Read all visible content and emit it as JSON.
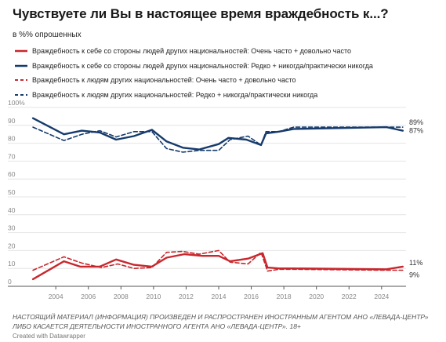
{
  "header": {
    "title": "Чувствуете ли Вы в настоящее время враждебность к...?",
    "subtitle": "в %% опрошенных"
  },
  "footer": {
    "note": "НАСТОЯЩИЙ МАТЕРИАЛ (ИНФОРМАЦИЯ) ПРОИЗВЕДЕН И РАСПРОСТРАНЕН ИНОСТРАННЫМ АГЕНТОМ АНО «ЛЕВАДА-ЦЕНТР» ЛИБО КАСАЕТСЯ ДЕЯТЕЛЬНОСТИ ИНОСТРАННОГО АГЕНТА АНО «ЛЕВАДА-ЦЕНТР». 18+",
    "credit": "Created with Datawrapper"
  },
  "colors": {
    "red": "#c8272d",
    "navy": "#163b6b",
    "grid": "#e4e4e4"
  },
  "chart_data": {
    "type": "line",
    "xlim": [
      2002.5,
      2025.5
    ],
    "ylim": [
      0,
      100
    ],
    "y_ticks": [
      0,
      10,
      20,
      30,
      40,
      50,
      60,
      70,
      80,
      90,
      100
    ],
    "y_tick_labels": [
      "0",
      "10",
      "20",
      "30",
      "40",
      "50",
      "60",
      "70",
      "80",
      "90",
      "100%"
    ],
    "x_ticks": [
      2004,
      2006,
      2008,
      2010,
      2012,
      2014,
      2016,
      2018,
      2020,
      2022,
      2024
    ],
    "x_tick_labels": [
      "2004",
      "2006",
      "2008",
      "2010",
      "2012",
      "2014",
      "2016",
      "2018",
      "2020",
      "2022",
      "2024"
    ],
    "grid": true,
    "legend_position": "top",
    "series": [
      {
        "name": "Враждебность к себе со стороны людей других национальностей: Очень часто + довольно часто",
        "color": "#c8272d",
        "dash": false,
        "end_label": "11%",
        "points": [
          [
            2002.6,
            4
          ],
          [
            2004.5,
            14
          ],
          [
            2005.5,
            11
          ],
          [
            2006.7,
            11
          ],
          [
            2007.7,
            15
          ],
          [
            2008.8,
            12
          ],
          [
            2009.9,
            11
          ],
          [
            2010.8,
            16
          ],
          [
            2011.9,
            18
          ],
          [
            2013.0,
            17
          ],
          [
            2014.0,
            17
          ],
          [
            2014.7,
            14
          ],
          [
            2015.8,
            15.5
          ],
          [
            2016.7,
            18.5
          ],
          [
            2017.0,
            10.5
          ],
          [
            2017.7,
            10
          ],
          [
            2018.6,
            10
          ],
          [
            2024.3,
            9.5
          ],
          [
            2025.3,
            11
          ]
        ]
      },
      {
        "name": "Враждебность к себе со стороны людей других национальностей: Редко + никогда/практически никогда",
        "color": "#163b6b",
        "dash": false,
        "end_label": "87%",
        "points": [
          [
            2002.6,
            94
          ],
          [
            2004.5,
            85
          ],
          [
            2005.6,
            87
          ],
          [
            2006.7,
            86
          ],
          [
            2007.7,
            82
          ],
          [
            2008.8,
            84
          ],
          [
            2009.9,
            87.5
          ],
          [
            2010.8,
            81
          ],
          [
            2011.8,
            77.5
          ],
          [
            2012.8,
            76.5
          ],
          [
            2014.0,
            79.5
          ],
          [
            2014.6,
            83
          ],
          [
            2015.7,
            82
          ],
          [
            2016.6,
            79
          ],
          [
            2016.9,
            85.5
          ],
          [
            2017.7,
            86.5
          ],
          [
            2018.6,
            88
          ],
          [
            2024.3,
            89
          ],
          [
            2025.3,
            87
          ]
        ]
      },
      {
        "name": "Враждебность к людям других национальностей: Очень часто + довольно часто",
        "color": "#c8272d",
        "dash": true,
        "end_label": "",
        "points": [
          [
            2002.6,
            9
          ],
          [
            2004.5,
            16.5
          ],
          [
            2005.6,
            13
          ],
          [
            2006.8,
            10.5
          ],
          [
            2007.8,
            12.5
          ],
          [
            2008.8,
            10
          ],
          [
            2009.9,
            10.5
          ],
          [
            2010.8,
            19
          ],
          [
            2011.8,
            19.5
          ],
          [
            2012.8,
            18
          ],
          [
            2014.0,
            20
          ],
          [
            2014.7,
            13.5
          ],
          [
            2015.8,
            12.5
          ],
          [
            2016.6,
            19
          ],
          [
            2017.0,
            8.5
          ],
          [
            2017.7,
            9.5
          ],
          [
            2018.6,
            9.5
          ],
          [
            2024.3,
            9
          ],
          [
            2025.3,
            9
          ]
        ]
      },
      {
        "name": "Враждебность к людям других национальностей: Редко + никогда/практически никогда",
        "color": "#163b6b",
        "dash": true,
        "end_label": "",
        "points": [
          [
            2002.6,
            89
          ],
          [
            2004.5,
            81.5
          ],
          [
            2005.6,
            85
          ],
          [
            2006.7,
            87
          ],
          [
            2007.7,
            83.5
          ],
          [
            2008.8,
            86.5
          ],
          [
            2009.9,
            86.5
          ],
          [
            2010.8,
            77
          ],
          [
            2011.8,
            75
          ],
          [
            2012.8,
            76
          ],
          [
            2014.0,
            76
          ],
          [
            2014.7,
            82
          ],
          [
            2015.8,
            84
          ],
          [
            2016.6,
            79
          ],
          [
            2016.9,
            86.5
          ],
          [
            2017.7,
            86.5
          ],
          [
            2018.6,
            89
          ],
          [
            2024.3,
            89
          ],
          [
            2025.3,
            89
          ]
        ]
      }
    ],
    "end_labels_extra": [
      {
        "text": "89%",
        "color": "#333333",
        "y": 89
      },
      {
        "text": "9%",
        "color": "#333333",
        "y": 9
      }
    ]
  }
}
